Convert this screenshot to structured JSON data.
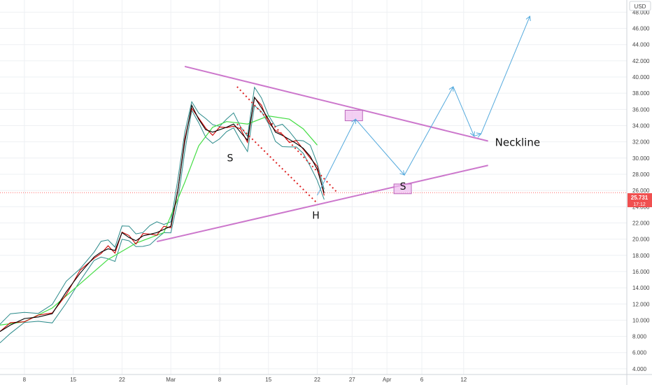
{
  "chart_data": {
    "type": "line",
    "currency_label": "USD",
    "y_ticks": [
      "48.000",
      "46.000",
      "44.000",
      "42.000",
      "40.000",
      "38.000",
      "36.000",
      "34.000",
      "32.000",
      "30.000",
      "28.000",
      "26.000",
      "24.000",
      "22.000",
      "20.000",
      "18.000",
      "16.000",
      "14.000",
      "12.000",
      "10.000",
      "8.000",
      "6.000",
      "4.000"
    ],
    "y_tick_values": [
      48,
      46,
      44,
      42,
      40,
      38,
      36,
      34,
      32,
      30,
      28,
      26,
      24,
      22,
      20,
      18,
      16,
      14,
      12,
      10,
      8,
      6,
      4
    ],
    "ylim": [
      3.3,
      49.5
    ],
    "x_ticks": [
      "8",
      "15",
      "22",
      "Mar",
      "8",
      "15",
      "22",
      "27",
      "Apr",
      "6",
      "12"
    ],
    "x_tick_days": [
      8,
      15,
      22,
      29,
      36,
      43,
      50,
      55,
      60,
      65,
      71
    ],
    "xlim": [
      4.5,
      94.4
    ],
    "last_price": "25.731",
    "countdown": "17:12",
    "price_series": {
      "x": [
        4.5,
        6,
        8,
        10,
        12,
        14,
        16,
        18,
        19,
        20,
        21,
        22,
        23,
        24,
        25,
        26,
        27,
        28,
        29,
        30,
        31,
        32,
        33,
        34,
        35,
        36,
        37,
        38,
        39,
        40,
        41,
        42,
        43,
        44,
        45,
        46,
        47,
        48,
        49,
        50,
        51
      ],
      "y": [
        8.6,
        9.4,
        10.2,
        10.4,
        10.8,
        13.5,
        15.8,
        17.8,
        18.4,
        18.8,
        18.6,
        20.8,
        20.2,
        19.8,
        20.4,
        20.6,
        20.8,
        21.2,
        21.6,
        26,
        32,
        36.5,
        34.8,
        33.5,
        33.2,
        33.5,
        33.8,
        34.2,
        33.2,
        32.2,
        37.5,
        36.2,
        34.8,
        33.2,
        32.8,
        32.3,
        31.8,
        31.2,
        30.2,
        28.6,
        25.7
      ]
    },
    "ma_green": {
      "x": [
        4.5,
        8,
        12,
        16,
        20,
        24,
        28,
        31,
        33,
        35,
        37,
        40,
        43,
        46,
        48,
        50
      ],
      "y": [
        9.4,
        9.8,
        11.5,
        14.5,
        17.5,
        19.5,
        20.8,
        27,
        31.5,
        33.8,
        34.5,
        34.2,
        35.2,
        34.8,
        33.6,
        31.6
      ]
    },
    "trendlines": [
      {
        "x": [
          31.0,
          74.5
        ],
        "y": [
          41.3,
          32.1
        ]
      },
      {
        "x": [
          27.0,
          74.5
        ],
        "y": [
          19.7,
          29.1
        ]
      }
    ],
    "dotted_lines": [
      {
        "x": [
          38.5,
          52.7
        ],
        "y": [
          38.8,
          25.9
        ]
      },
      {
        "x": [
          38.5,
          49.8
        ],
        "y": [
          34.2,
          24.6
        ]
      }
    ],
    "projection_path": {
      "x": [
        50.0,
        55.5,
        62.5,
        69.5,
        72.5,
        73.5,
        80.5
      ],
      "y": [
        25.4,
        34.8,
        27.9,
        38.8,
        32.7,
        33.0,
        47.5
      ]
    },
    "boxes": [
      {
        "x": [
          54.0,
          56.5
        ],
        "y": [
          34.6,
          35.9
        ]
      },
      {
        "x": [
          61.0,
          63.5
        ],
        "y": [
          25.6,
          26.8
        ]
      }
    ],
    "labels": [
      {
        "text": "S",
        "x": 37.5,
        "y": 29.6
      },
      {
        "text": "H",
        "x": 49.8,
        "y": 22.5
      },
      {
        "text": "S",
        "x": 62.3,
        "y": 26.1
      },
      {
        "text": "Neckline",
        "x": 75.5,
        "y": 31.5
      }
    ],
    "colors": {
      "price": "#000000",
      "ma_red": "#cc0000",
      "ma_teal": "#2a8a8a",
      "ma_green": "#44dd44",
      "trendline": "#cc77cc",
      "dotted": "#dd2222",
      "projection": "#55aadd",
      "box_fill": "#eebbee",
      "box_stroke": "#bb66bb",
      "price_line": "#ff6666",
      "price_badge": "#f05050"
    }
  }
}
